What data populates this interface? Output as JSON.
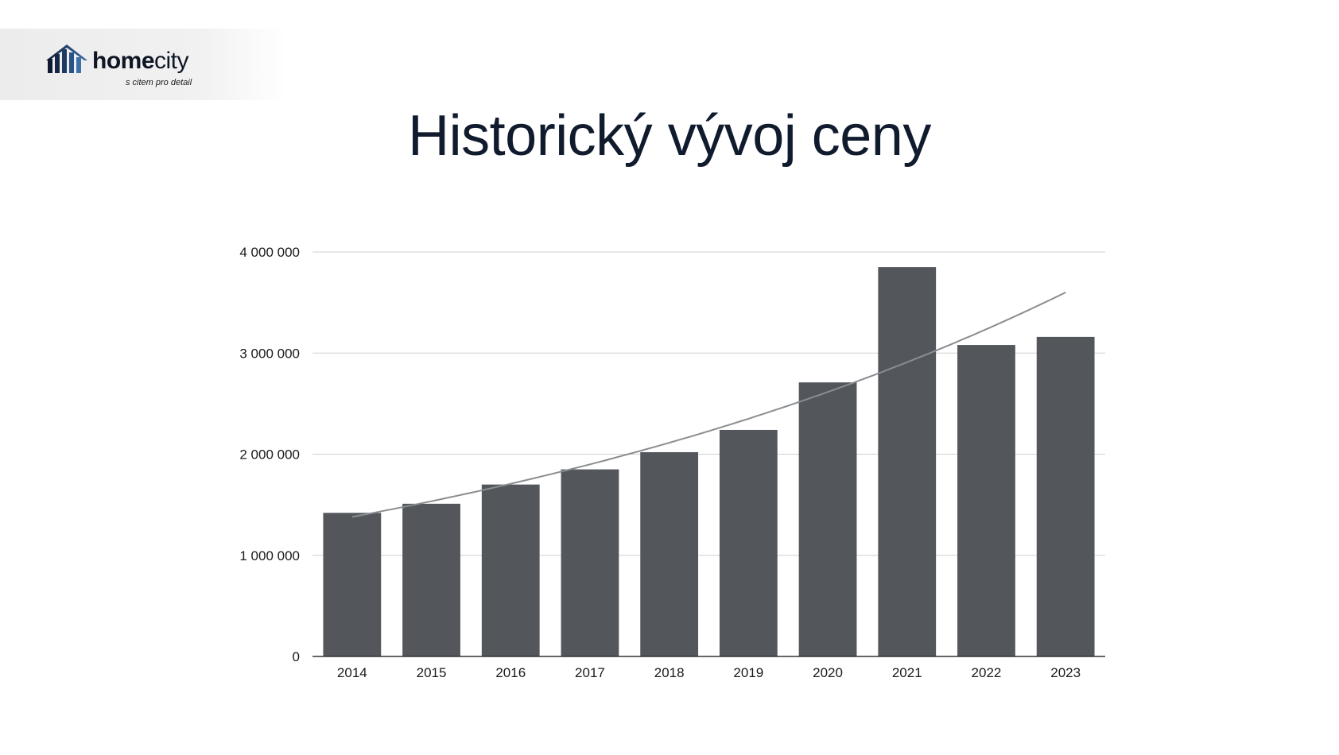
{
  "logo": {
    "brand_bold": "home",
    "brand_regular": "city",
    "tagline": "s citem pro detail"
  },
  "title": "Historický vývoj ceny",
  "chart_data": {
    "type": "bar",
    "title": "Historický vývoj ceny",
    "xlabel": "",
    "ylabel": "",
    "categories": [
      "2014",
      "2015",
      "2016",
      "2017",
      "2018",
      "2019",
      "2020",
      "2021",
      "2022",
      "2023"
    ],
    "values": [
      1420000,
      1510000,
      1700000,
      1850000,
      2020000,
      2240000,
      2710000,
      3850000,
      3080000,
      3160000
    ],
    "ylim": [
      0,
      4000000
    ],
    "yticks": [
      0,
      1000000,
      2000000,
      3000000,
      4000000
    ],
    "ytick_labels": [
      "0",
      "1 000 000",
      "2 000 000",
      "3 000 000",
      "4 000 000"
    ],
    "trendline": {
      "type": "exponential",
      "start_value": 1380000,
      "end_value": 3600000
    },
    "grid": true,
    "legend": "none",
    "colors": {
      "bar": "#53575c",
      "trend": "#8a8d91",
      "grid": "#cfcfcf",
      "axis": "#333333"
    }
  }
}
